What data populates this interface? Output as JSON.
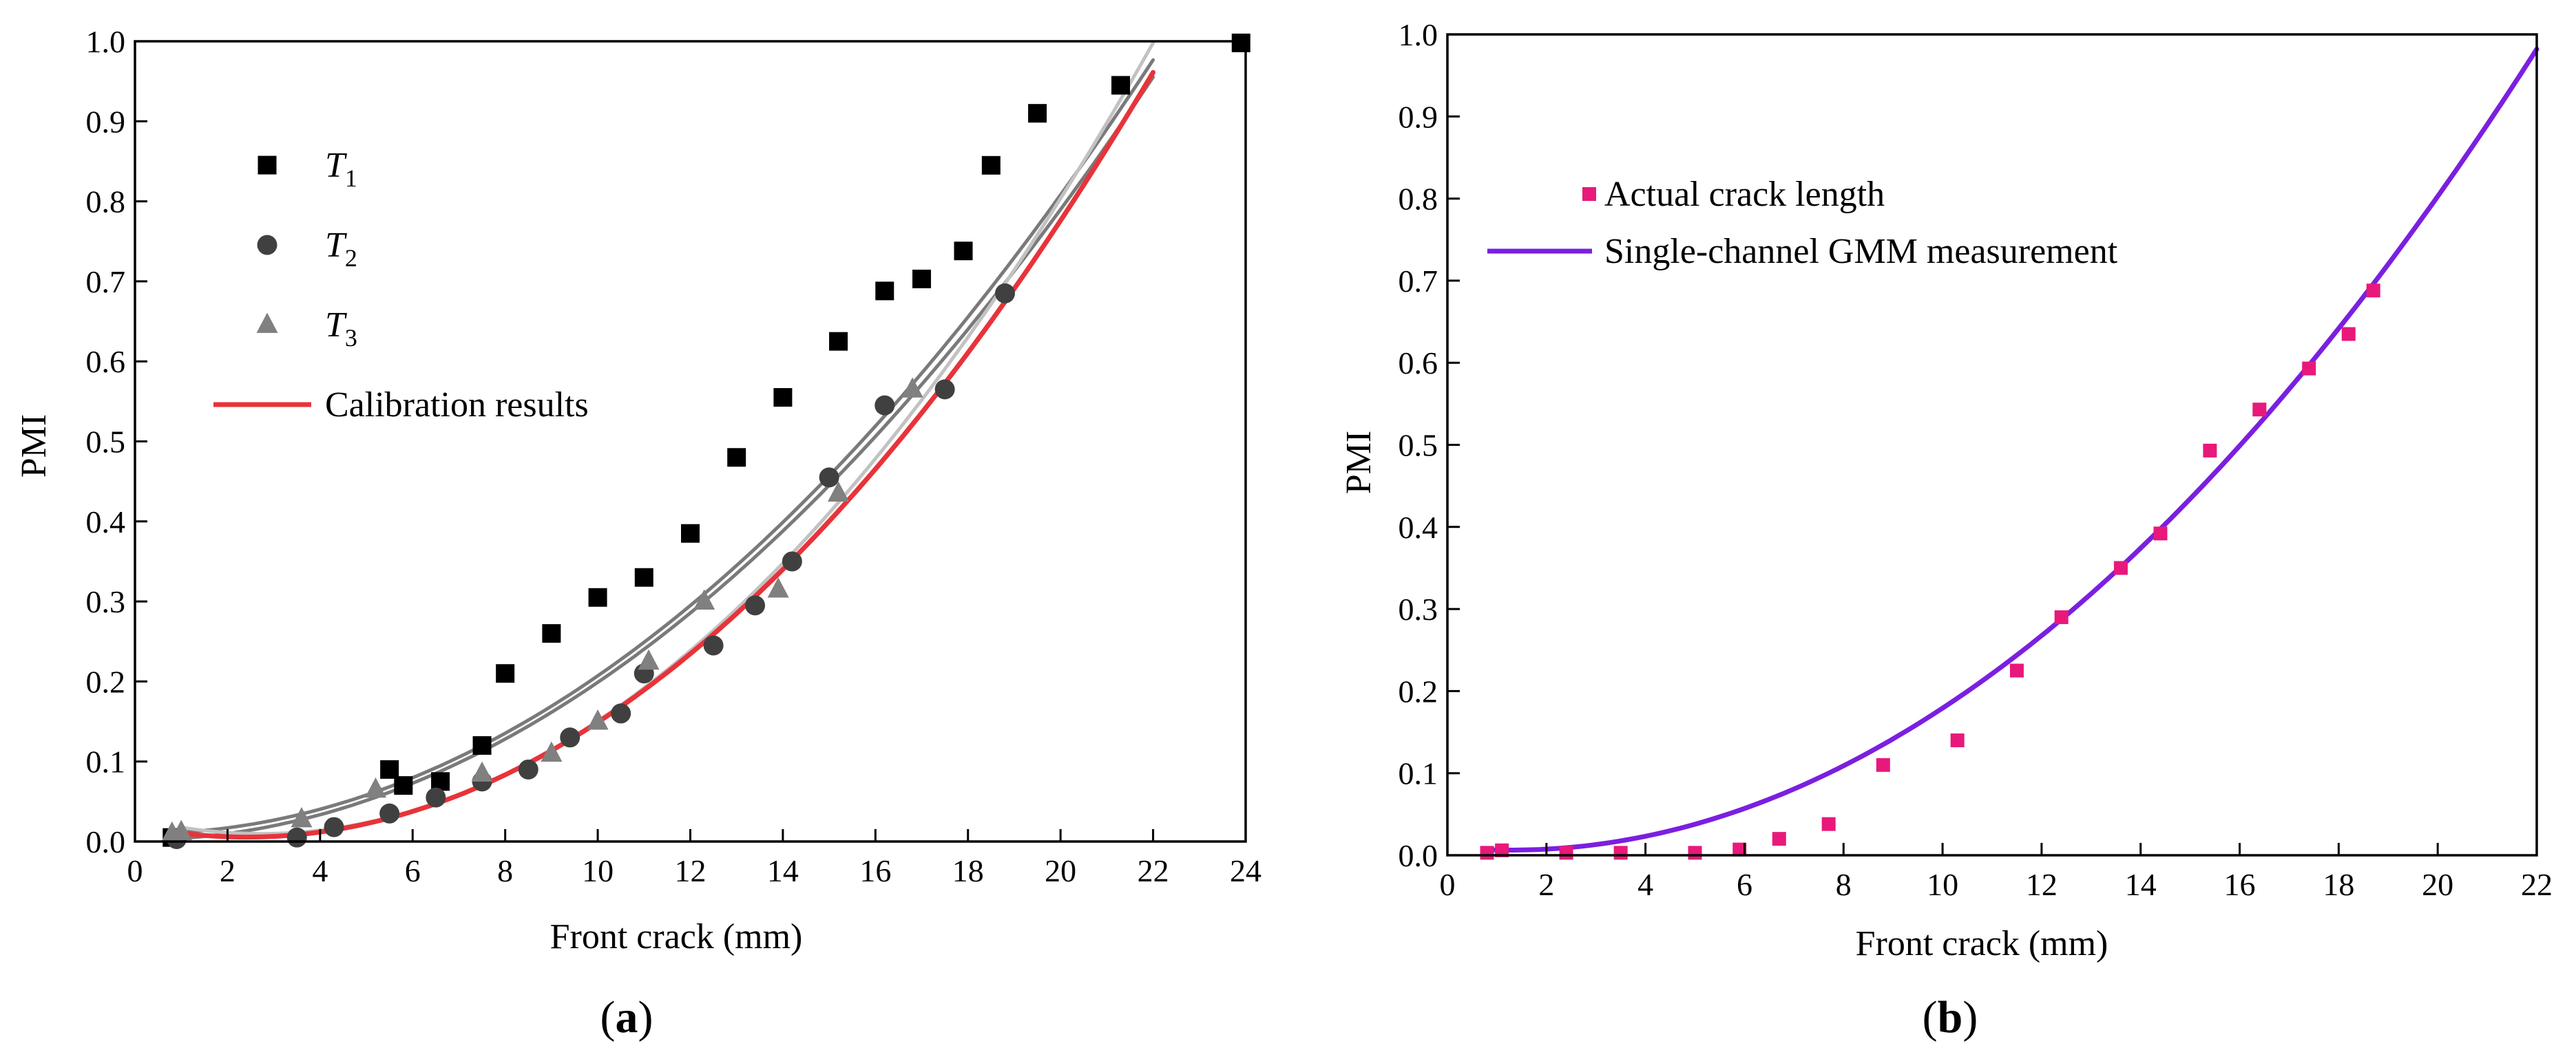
{
  "panels": [
    {
      "label_open": "(",
      "label_letter": "a",
      "label_close": ")"
    },
    {
      "label_open": "(",
      "label_letter": "b",
      "label_close": ")"
    }
  ],
  "chart_data": [
    {
      "type": "scatter",
      "xlabel": "Front crack (mm)",
      "ylabel": "PMI",
      "xlim": [
        0,
        24
      ],
      "ylim": [
        0,
        1.0
      ],
      "xticks": [
        "0",
        "2",
        "4",
        "6",
        "8",
        "10",
        "12",
        "14",
        "16",
        "18",
        "20",
        "22",
        "24"
      ],
      "yticks": [
        "0.0",
        "0.1",
        "0.2",
        "0.3",
        "0.4",
        "0.5",
        "0.6",
        "0.7",
        "0.8",
        "0.9",
        "1.0"
      ],
      "grid": false,
      "legend_position": "top-left",
      "legend": [
        {
          "kind": "marker",
          "marker": "square",
          "base": "T",
          "sub": "1",
          "color": "#000000"
        },
        {
          "kind": "marker",
          "marker": "circle",
          "base": "T",
          "sub": "2",
          "color": "#404040"
        },
        {
          "kind": "marker",
          "marker": "triangle",
          "base": "T",
          "sub": "3",
          "color": "#808080"
        },
        {
          "kind": "line",
          "text": "Calibration results",
          "color": "#e8333a",
          "text_color": "#e8333a"
        }
      ],
      "series": [
        {
          "name": "T1",
          "marker": "square",
          "color": "#000000",
          "x": [
            0.8,
            5.5,
            5.8,
            6.6,
            7.5,
            8.0,
            9.0,
            10.0,
            11.0,
            12.0,
            13.0,
            14.0,
            15.2,
            16.2,
            17.0,
            17.9,
            18.5,
            19.5,
            21.3,
            23.9
          ],
          "y": [
            0.005,
            0.09,
            0.07,
            0.075,
            0.12,
            0.21,
            0.26,
            0.305,
            0.33,
            0.385,
            0.48,
            0.555,
            0.625,
            0.688,
            0.703,
            0.738,
            0.845,
            0.91,
            0.945,
            0.998
          ]
        },
        {
          "name": "T2",
          "marker": "circle",
          "color": "#404040",
          "x": [
            0.9,
            3.5,
            4.3,
            5.5,
            6.5,
            7.5,
            8.5,
            9.4,
            10.5,
            11.0,
            12.5,
            13.4,
            14.2,
            15.0,
            16.2,
            17.5,
            18.8
          ],
          "y": [
            0.003,
            0.005,
            0.018,
            0.035,
            0.055,
            0.075,
            0.09,
            0.13,
            0.16,
            0.21,
            0.245,
            0.295,
            0.35,
            0.455,
            0.545,
            0.565,
            0.685
          ],
          "fit": {
            "a": 0.002,
            "b": -1e-05,
            "c": 0.00197
          }
        },
        {
          "name": "T3",
          "marker": "triangle",
          "color": "#808080",
          "x": [
            0.8,
            1.0,
            3.6,
            5.2,
            7.5,
            9.0,
            10.0,
            11.1,
            12.3,
            13.9,
            15.2,
            16.8
          ],
          "y": [
            0.01,
            0.012,
            0.028,
            0.065,
            0.085,
            0.11,
            0.15,
            0.225,
            0.3,
            0.315,
            0.435,
            0.565
          ],
          "fit": {
            "a": 0.01,
            "b": -0.0005,
            "c": 0.00202
          }
        },
        {
          "name": "",
          "kind": "fit_only",
          "color": "#c2c2c2",
          "fit": {
            "a": 0.0295,
            "b": -0.0145,
            "c": 0.00266
          }
        },
        {
          "name": "Calibration results",
          "kind": "line",
          "color": "#e8333a",
          "fit": {
            "a": 0.02,
            "b": -0.012,
            "c": 0.00249
          }
        }
      ],
      "fit_range": [
        1.0,
        22.0
      ]
    },
    {
      "type": "scatter",
      "xlabel": "Front crack (mm)",
      "ylabel": "PMI",
      "xlim": [
        0,
        22
      ],
      "ylim": [
        0,
        1.0
      ],
      "xticks": [
        "0",
        "2",
        "4",
        "6",
        "8",
        "10",
        "12",
        "14",
        "16",
        "18",
        "20",
        "22"
      ],
      "yticks": [
        "0.0",
        "0.1",
        "0.2",
        "0.3",
        "0.4",
        "0.5",
        "0.6",
        "0.7",
        "0.8",
        "0.9",
        "1.0"
      ],
      "grid": false,
      "legend_position": "top-left",
      "legend": [
        {
          "kind": "marker",
          "marker": "square",
          "text": "Actual crack length",
          "color": "#e8197a"
        },
        {
          "kind": "line",
          "text": "Single-channel GMM measurement",
          "color": "#7b1fe0"
        }
      ],
      "series": [
        {
          "name": "Actual crack length",
          "marker": "square",
          "color": "#e8197a",
          "x": [
            0.8,
            1.1,
            2.4,
            3.5,
            5.0,
            5.9,
            6.7,
            7.7,
            8.8,
            10.3,
            11.5,
            12.4,
            13.6,
            14.4,
            15.4,
            16.4,
            17.4,
            18.2,
            18.7
          ],
          "y": [
            0.003,
            0.006,
            0.003,
            0.003,
            0.003,
            0.007,
            0.02,
            0.038,
            0.11,
            0.14,
            0.225,
            0.29,
            0.35,
            0.392,
            0.493,
            0.543,
            0.593,
            0.635,
            0.688
          ]
        },
        {
          "name": "Single-channel GMM measurement",
          "kind": "line",
          "color": "#7b1fe0",
          "fit": {
            "a": 0.01,
            "b": -0.0058,
            "c": 0.002272
          }
        }
      ],
      "fit_range": [
        0.8,
        22.0
      ]
    }
  ]
}
